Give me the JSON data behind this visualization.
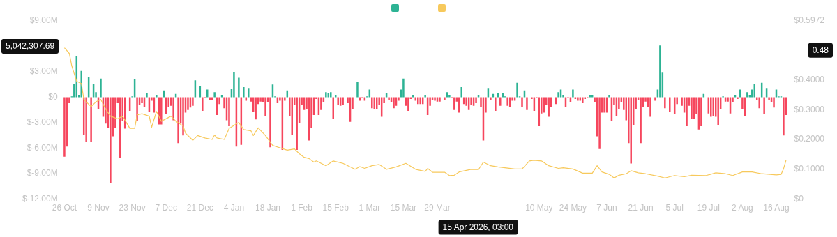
{
  "chart_data": {
    "type": "bar",
    "categories": [
      "26 Oct",
      null,
      null,
      null,
      null,
      null,
      null,
      null,
      null,
      null,
      null,
      null,
      null,
      null,
      "9 Nov",
      null,
      null,
      null,
      null,
      null,
      null,
      null,
      null,
      null,
      null,
      null,
      null,
      null,
      "23 Nov",
      null,
      null,
      null,
      null,
      null,
      null,
      null,
      null,
      null,
      null,
      null,
      null,
      null,
      "7 Dec",
      null,
      null,
      null,
      null,
      null,
      null,
      null,
      null,
      null,
      null,
      null,
      null,
      null,
      "21 Dec",
      null,
      null,
      null,
      null,
      null,
      null,
      null,
      null,
      null,
      null,
      null,
      null,
      null,
      "4 Jan",
      null,
      null,
      null,
      null,
      null,
      null,
      null,
      null,
      null,
      null,
      null,
      null,
      null,
      "18 Jan",
      null,
      null,
      null,
      null,
      null,
      null,
      null,
      null,
      null,
      null,
      null,
      null,
      null,
      "1 Feb",
      null,
      null,
      null,
      null,
      null,
      null,
      null,
      null,
      null,
      null,
      null,
      null,
      null,
      "15 Feb",
      null,
      null,
      null,
      null,
      null,
      null,
      null,
      null,
      null,
      null,
      null,
      null,
      null,
      "1 Mar",
      null,
      null,
      null,
      null,
      null,
      null,
      null,
      null,
      null,
      null,
      null,
      null,
      null,
      "15 Mar",
      null,
      null,
      null,
      null,
      null,
      null,
      null,
      null,
      null,
      null,
      null,
      null,
      null,
      "29 Mar",
      null,
      null,
      null,
      null,
      null,
      null,
      null,
      null,
      null,
      null,
      null,
      null,
      null,
      null,
      null,
      null,
      null,
      null,
      null,
      null,
      null,
      null,
      null,
      null,
      null,
      null,
      null,
      null,
      null,
      null,
      null,
      null,
      null,
      null,
      null,
      null,
      null,
      null,
      null,
      null,
      null,
      "10 May",
      null,
      null,
      null,
      null,
      null,
      null,
      null,
      null,
      null,
      null,
      null,
      null,
      null,
      "24 May",
      null,
      null,
      null,
      null,
      null,
      null,
      null,
      null,
      null,
      null,
      null,
      null,
      null,
      "7 Jun",
      null,
      null,
      null,
      null,
      null,
      null,
      null,
      null,
      null,
      null,
      null,
      null,
      null,
      "21 Jun",
      null,
      null,
      null,
      null,
      null,
      null,
      null,
      null,
      null,
      null,
      null,
      null,
      null,
      "5 Jul",
      null,
      null,
      null,
      null,
      null,
      null,
      null,
      null,
      null,
      null,
      null,
      null,
      null,
      "19 Jul",
      null,
      null,
      null,
      null,
      null,
      null,
      null,
      null,
      null,
      null,
      null,
      null,
      null,
      "2 Aug",
      null,
      null,
      null,
      null,
      null,
      null,
      null,
      null,
      null,
      null,
      null,
      null,
      null,
      "16 Aug",
      null,
      null,
      null,
      null
    ],
    "series": [
      {
        "color": "#2db394",
        "axis": "y",
        "values": [
          -7.0,
          -5.8,
          -0.7,
          0.1,
          1.6,
          4.8,
          0.2,
          3.1,
          -4.4,
          -5.3,
          2.4,
          -5.3,
          1.6,
          0.6,
          -1.4,
          2.2,
          -2.3,
          -3.1,
          -3.6,
          -10.1,
          -4.6,
          -3.6,
          -0.7,
          -7.1,
          -2.8,
          -3.7,
          0,
          -1.6,
          0.1,
          2.1,
          -2.8,
          -0.9,
          -0.7,
          -1.1,
          0.5,
          -1.7,
          -0.4,
          -1.8,
          0.3,
          -3.2,
          -3.2,
          0.8,
          -2.0,
          -1.1,
          -1.0,
          -2.7,
          0.4,
          -5.4,
          -3.1,
          -4.5,
          -1.8,
          -1.5,
          -1.2,
          -1.0,
          2.0,
          0,
          1.3,
          -1.6,
          -0.1,
          0.9,
          -0.3,
          -0.3,
          0.6,
          -2.1,
          -0.8,
          0.2,
          -1.3,
          -2.7,
          -3.4,
          1.0,
          3.0,
          -5.8,
          2.3,
          -5.6,
          1.2,
          -0.4,
          1.1,
          -0.5,
          -1.7,
          -2.6,
          -0.8,
          -0.5,
          -0.6,
          -2.2,
          -0.6,
          -5.9,
          1.5,
          0.1,
          -0.7,
          -0.4,
          -6.2,
          -0.4,
          0.8,
          -2.2,
          -4.4,
          -0.9,
          -6.2,
          -3.0,
          -0.9,
          -1.5,
          -1.4,
          -5.1,
          -3.6,
          -2.1,
          -0.2,
          -2.1,
          -1.5,
          -0.6,
          0.6,
          0.5,
          0.6,
          -2.5,
          0.2,
          -0.9,
          -1.0,
          -0.9,
          0,
          -0.7,
          -2.9,
          -1.4,
          0,
          1.8,
          -0.4,
          -0.1,
          -0.4,
          0.1,
          0.9,
          -1.3,
          -1.4,
          -1.4,
          -0.9,
          -2.3,
          -0.7,
          0.5,
          -0.3,
          -0.6,
          -1.3,
          -1.0,
          -0.4,
          0.9,
          2.2,
          -1.0,
          -1.6,
          -0.2,
          0.3,
          -0.4,
          -0.8,
          -0.8,
          -0.8,
          0.2,
          -2.1,
          -1.0,
          -0.3,
          -0.4,
          -0.5,
          -0.5,
          0,
          -0.3,
          0.6,
          0.3,
          -0.1,
          -1.5,
          -0.5,
          -1.8,
          1.2,
          -0.8,
          -1.0,
          -1.5,
          -0.9,
          -1.0,
          -0.7,
          0.2,
          -1.1,
          -5.1,
          -1.8,
          1.1,
          -0.3,
          0.4,
          -1.6,
          0.5,
          -1.0,
          0.5,
          0.1,
          -1.0,
          -1.1,
          -0.4,
          -0.4,
          1.7,
          0.1,
          -1.1,
          0.8,
          -1.5,
          0,
          -0.2,
          -1.6,
          -0.1,
          -3.4,
          -1.9,
          -1.8,
          -0.9,
          -2.3,
          -1.1,
          0,
          -0.8,
          0.6,
          0.9,
          0.3,
          -1.1,
          -0.1,
          -0.6,
          0.9,
          -0.2,
          -0.4,
          -0.4,
          -0.7,
          -0.2,
          -0.1,
          0.2,
          0.2,
          -0.6,
          -4.6,
          -6.1,
          -1.8,
          -1.8,
          -1.8,
          0.2,
          -2.8,
          -0.9,
          -2.2,
          -1.4,
          -0.6,
          -1.5,
          -2.7,
          -5.4,
          -7.8,
          -3.3,
          -1.4,
          -0.3,
          -5.4,
          -1.1,
          -0.5,
          -1.1,
          -2.3,
          0,
          -0.4,
          0.9,
          6.1,
          2.9,
          -1.3,
          0,
          -1.7,
          0,
          -2.0,
          -0.8,
          0,
          -1.0,
          -1.8,
          -3.4,
          -1.0,
          -2.5,
          -2.5,
          -2.0,
          -3.8,
          -3.4,
          0.4,
          0,
          -1.9,
          -2.3,
          -2.2,
          -2.3,
          -3.3,
          -1.4,
          0.1,
          -0.5,
          -0.5,
          -1.9,
          -0.6,
          0.2,
          -0.2,
          0.9,
          -1.4,
          -2.2,
          0.6,
          0.3,
          0.9,
          1.6,
          -0.3,
          -1.3,
          1.7,
          -2.0,
          1.1,
          -0.3,
          -0.6,
          -1.2,
          0.9,
          0.1,
          0.1,
          -4.5,
          -2.1
        ],
        "colors": [
          "#f6465d",
          "#f6465d",
          "#f6465d",
          "#2db394",
          "#2db394",
          "#2db394",
          "#2db394",
          "#2db394",
          "#f6465d",
          "#f6465d",
          "#2db394",
          "#f6465d",
          "#2db394",
          "#2db394",
          "#f6465d",
          "#2db394",
          "#f6465d",
          "#f6465d",
          "#f6465d",
          "#f6465d",
          "#f6465d",
          "#f6465d",
          "#f6465d",
          "#f6465d",
          "#f6465d",
          "#f6465d",
          "#2db394",
          "#f6465d",
          "#2db394",
          "#2db394",
          "#f6465d",
          "#f6465d",
          "#f6465d",
          "#f6465d",
          "#2db394",
          "#f6465d",
          "#f6465d",
          "#f6465d",
          "#2db394",
          "#f6465d",
          "#f6465d",
          "#2db394",
          "#f6465d",
          "#f6465d",
          "#f6465d",
          "#f6465d",
          "#2db394",
          "#f6465d",
          "#f6465d",
          "#f6465d",
          "#f6465d",
          "#f6465d",
          "#f6465d",
          "#f6465d",
          "#2db394",
          "#2db394",
          "#2db394",
          "#f6465d",
          "#f6465d",
          "#2db394",
          "#f6465d",
          "#f6465d",
          "#2db394",
          "#f6465d",
          "#f6465d",
          "#2db394",
          "#f6465d",
          "#f6465d",
          "#f6465d",
          "#2db394",
          "#2db394",
          "#f6465d",
          "#2db394",
          "#f6465d",
          "#2db394",
          "#f6465d",
          "#2db394",
          "#f6465d",
          "#f6465d",
          "#f6465d",
          "#f6465d",
          "#f6465d",
          "#f6465d",
          "#f6465d",
          "#f6465d",
          "#f6465d",
          "#2db394",
          "#2db394",
          "#f6465d",
          "#f6465d",
          "#f6465d",
          "#f6465d",
          "#2db394",
          "#f6465d",
          "#f6465d",
          "#f6465d",
          "#f6465d",
          "#f6465d",
          "#f6465d",
          "#f6465d",
          "#f6465d",
          "#f6465d",
          "#f6465d",
          "#f6465d",
          "#f6465d",
          "#f6465d",
          "#f6465d",
          "#f6465d",
          "#2db394",
          "#2db394",
          "#2db394",
          "#f6465d",
          "#2db394",
          "#f6465d",
          "#f6465d",
          "#f6465d",
          "#2db394",
          "#f6465d",
          "#f6465d",
          "#f6465d",
          "#2db394",
          "#2db394",
          "#f6465d",
          "#f6465d",
          "#f6465d",
          "#2db394",
          "#2db394",
          "#f6465d",
          "#f6465d",
          "#f6465d",
          "#f6465d",
          "#f6465d",
          "#f6465d",
          "#2db394",
          "#f6465d",
          "#f6465d",
          "#f6465d",
          "#f6465d",
          "#f6465d",
          "#2db394",
          "#2db394",
          "#f6465d",
          "#f6465d",
          "#f6465d",
          "#2db394",
          "#f6465d",
          "#f6465d",
          "#f6465d",
          "#f6465d",
          "#2db394",
          "#f6465d",
          "#f6465d",
          "#f6465d",
          "#f6465d",
          "#f6465d",
          "#f6465d",
          "#2db394",
          "#f6465d",
          "#2db394",
          "#2db394",
          "#f6465d",
          "#f6465d",
          "#f6465d",
          "#f6465d",
          "#2db394",
          "#f6465d",
          "#f6465d",
          "#f6465d",
          "#f6465d",
          "#f6465d",
          "#f6465d",
          "#2db394",
          "#f6465d",
          "#f6465d",
          "#f6465d",
          "#2db394",
          "#f6465d",
          "#2db394",
          "#f6465d",
          "#2db394",
          "#f6465d",
          "#2db394",
          "#2db394",
          "#f6465d",
          "#f6465d",
          "#f6465d",
          "#f6465d",
          "#2db394",
          "#2db394",
          "#f6465d",
          "#2db394",
          "#f6465d",
          "#2db394",
          "#f6465d",
          "#f6465d",
          "#f6465d",
          "#f6465d",
          "#f6465d",
          "#f6465d",
          "#f6465d",
          "#f6465d",
          "#f6465d",
          "#2db394",
          "#f6465d",
          "#2db394",
          "#2db394",
          "#2db394",
          "#f6465d",
          "#f6465d",
          "#f6465d",
          "#2db394",
          "#f6465d",
          "#f6465d",
          "#f6465d",
          "#f6465d",
          "#f6465d",
          "#f6465d",
          "#2db394",
          "#2db394",
          "#f6465d",
          "#f6465d",
          "#f6465d",
          "#f6465d",
          "#f6465d",
          "#f6465d",
          "#2db394",
          "#f6465d",
          "#f6465d",
          "#f6465d",
          "#f6465d",
          "#f6465d",
          "#f6465d",
          "#f6465d",
          "#f6465d",
          "#f6465d",
          "#f6465d",
          "#f6465d",
          "#f6465d",
          "#f6465d",
          "#f6465d",
          "#f6465d",
          "#f6465d",
          "#f6465d",
          "#2db394",
          "#f6465d",
          "#2db394",
          "#2db394",
          "#2db394",
          "#f6465d",
          "#2db394",
          "#f6465d",
          "#2db394",
          "#f6465d",
          "#f6465d",
          "#2db394",
          "#f6465d",
          "#f6465d",
          "#f6465d",
          "#f6465d",
          "#f6465d",
          "#f6465d",
          "#f6465d",
          "#f6465d",
          "#f6465d",
          "#2db394",
          "#2db394",
          "#f6465d",
          "#f6465d",
          "#f6465d",
          "#f6465d",
          "#f6465d",
          "#f6465d",
          "#2db394",
          "#f6465d",
          "#f6465d",
          "#f6465d",
          "#f6465d",
          "#2db394",
          "#f6465d",
          "#2db394",
          "#f6465d",
          "#f6465d",
          "#2db394",
          "#2db394",
          "#2db394",
          "#2db394",
          "#f6465d",
          "#f6465d",
          "#2db394",
          "#f6465d",
          "#2db394",
          "#f6465d",
          "#f6465d",
          "#f6465d",
          "#2db394",
          "#2db394",
          "#2db394",
          "#f6465d",
          "#f6465d"
        ]
      },
      {
        "type": "line",
        "color": "#f7c95c",
        "axis": "y2",
        "values": [
          0.507,
          null,
          0.488,
          0.447,
          null,
          0.395,
          null,
          0.387,
          0.334,
          0.326,
          null,
          0.31,
          null,
          0.326,
          null,
          0.334,
          null,
          0.302,
          null,
          0.278,
          null,
          null,
          0.269,
          null,
          0.278,
          null,
          null,
          0.237,
          null,
          0.237,
          0.282,
          null,
          0.286,
          null,
          null,
          0.278,
          0.241,
          null,
          0.294,
          null,
          0.261,
          null,
          null,
          null,
          0.278,
          null,
          0.261,
          null,
          null,
          0.245,
          0.221,
          null,
          null,
          0.197,
          null,
          0.213,
          null,
          null,
          0.205,
          null,
          null,
          0.2,
          0.215,
          0.205,
          null,
          null,
          0.2,
          null,
          0.237,
          null,
          null,
          null,
          0.257,
          null,
          0.233,
          null,
          null,
          0.229,
          0.213,
          null,
          0.239,
          null,
          null,
          0.213,
          null,
          null,
          0.18,
          null,
          null,
          0.172,
          null,
          null,
          0.164,
          null,
          null,
          0.168,
          null,
          0.152,
          null,
          0.14,
          null,
          0.136,
          null,
          0.124,
          0.128,
          null,
          null,
          null,
          0.112,
          null,
          null,
          0.128,
          null,
          null,
          null,
          0.12,
          null,
          null,
          null,
          null,
          0.1,
          null,
          0.109,
          null,
          0.103,
          null,
          null,
          0.112,
          null,
          null,
          0.116,
          null,
          null,
          0.1,
          null,
          null,
          null,
          0.108,
          null,
          null,
          null,
          0.12,
          null,
          null,
          null,
          0.1,
          null,
          null,
          null,
          0.093,
          0.103,
          null,
          0.09,
          null,
          null,
          null,
          null,
          0.09,
          null,
          0.079,
          null,
          0.08,
          null,
          0.091,
          null,
          null,
          null,
          null,
          0.1,
          null,
          null,
          0.099,
          null,
          0.124,
          null,
          null,
          0.112,
          null,
          null,
          0.108,
          null,
          null,
          null,
          null,
          null,
          null,
          0.101,
          null,
          null,
          0.101,
          null,
          null,
          0.128,
          null,
          0.13,
          null,
          null,
          0.128,
          null,
          null,
          0.112,
          null,
          null,
          null,
          0.103,
          null,
          0.105,
          null,
          null,
          null,
          0.101,
          null,
          null,
          null,
          0.087,
          null,
          null,
          null,
          0.087,
          null,
          0.112,
          null,
          0.091,
          null,
          null,
          0.083,
          null,
          0.071,
          null,
          0.08,
          null,
          null,
          0.085,
          null,
          0.095,
          null,
          null,
          0.088,
          null,
          null,
          0.085,
          null,
          null,
          null,
          null,
          0.077,
          null,
          null,
          0.071,
          null,
          null,
          null,
          0.079,
          null,
          null,
          null,
          0.075,
          null,
          null,
          0.08,
          null,
          null,
          null,
          null,
          null,
          0.079,
          null,
          null,
          null,
          0.088,
          null,
          null,
          null,
          0.085,
          null,
          null,
          0.079,
          null,
          null,
          null,
          0.091,
          null,
          null,
          null,
          0.091,
          null,
          null,
          null,
          0.085,
          null,
          null,
          null,
          null,
          null,
          0.081,
          null,
          0.083,
          0.102,
          0.13
        ]
      }
    ],
    "ylim": [
      -12,
      9
    ],
    "yticks": [
      {
        "value": -12,
        "label": "$-12.00M"
      },
      {
        "value": -9,
        "label": "$-9.00M"
      },
      {
        "value": -6,
        "label": "$-6.00M"
      },
      {
        "value": -3,
        "label": "$-3.00M"
      },
      {
        "value": 0,
        "label": "$0"
      },
      {
        "value": 3,
        "label": "$3.00M"
      },
      {
        "value": 9,
        "label": "$9.00M"
      }
    ],
    "y2lim": [
      0,
      0.5972
    ],
    "y2ticks": [
      {
        "value": 0,
        "label": "$0"
      },
      {
        "value": 0.1,
        "label": "$0.1000"
      },
      {
        "value": 0.2,
        "label": "$0.2000"
      },
      {
        "value": 0.3,
        "label": "$0.3000"
      },
      {
        "value": 0.4,
        "label": "$0.4000"
      },
      {
        "value": 0.5972,
        "label": "$0.5972"
      }
    ],
    "annotations": [
      "5,042,307.69",
      "0.48",
      "15 Apr 2026, 03:00"
    ],
    "grid": false,
    "marker": "none"
  }
}
